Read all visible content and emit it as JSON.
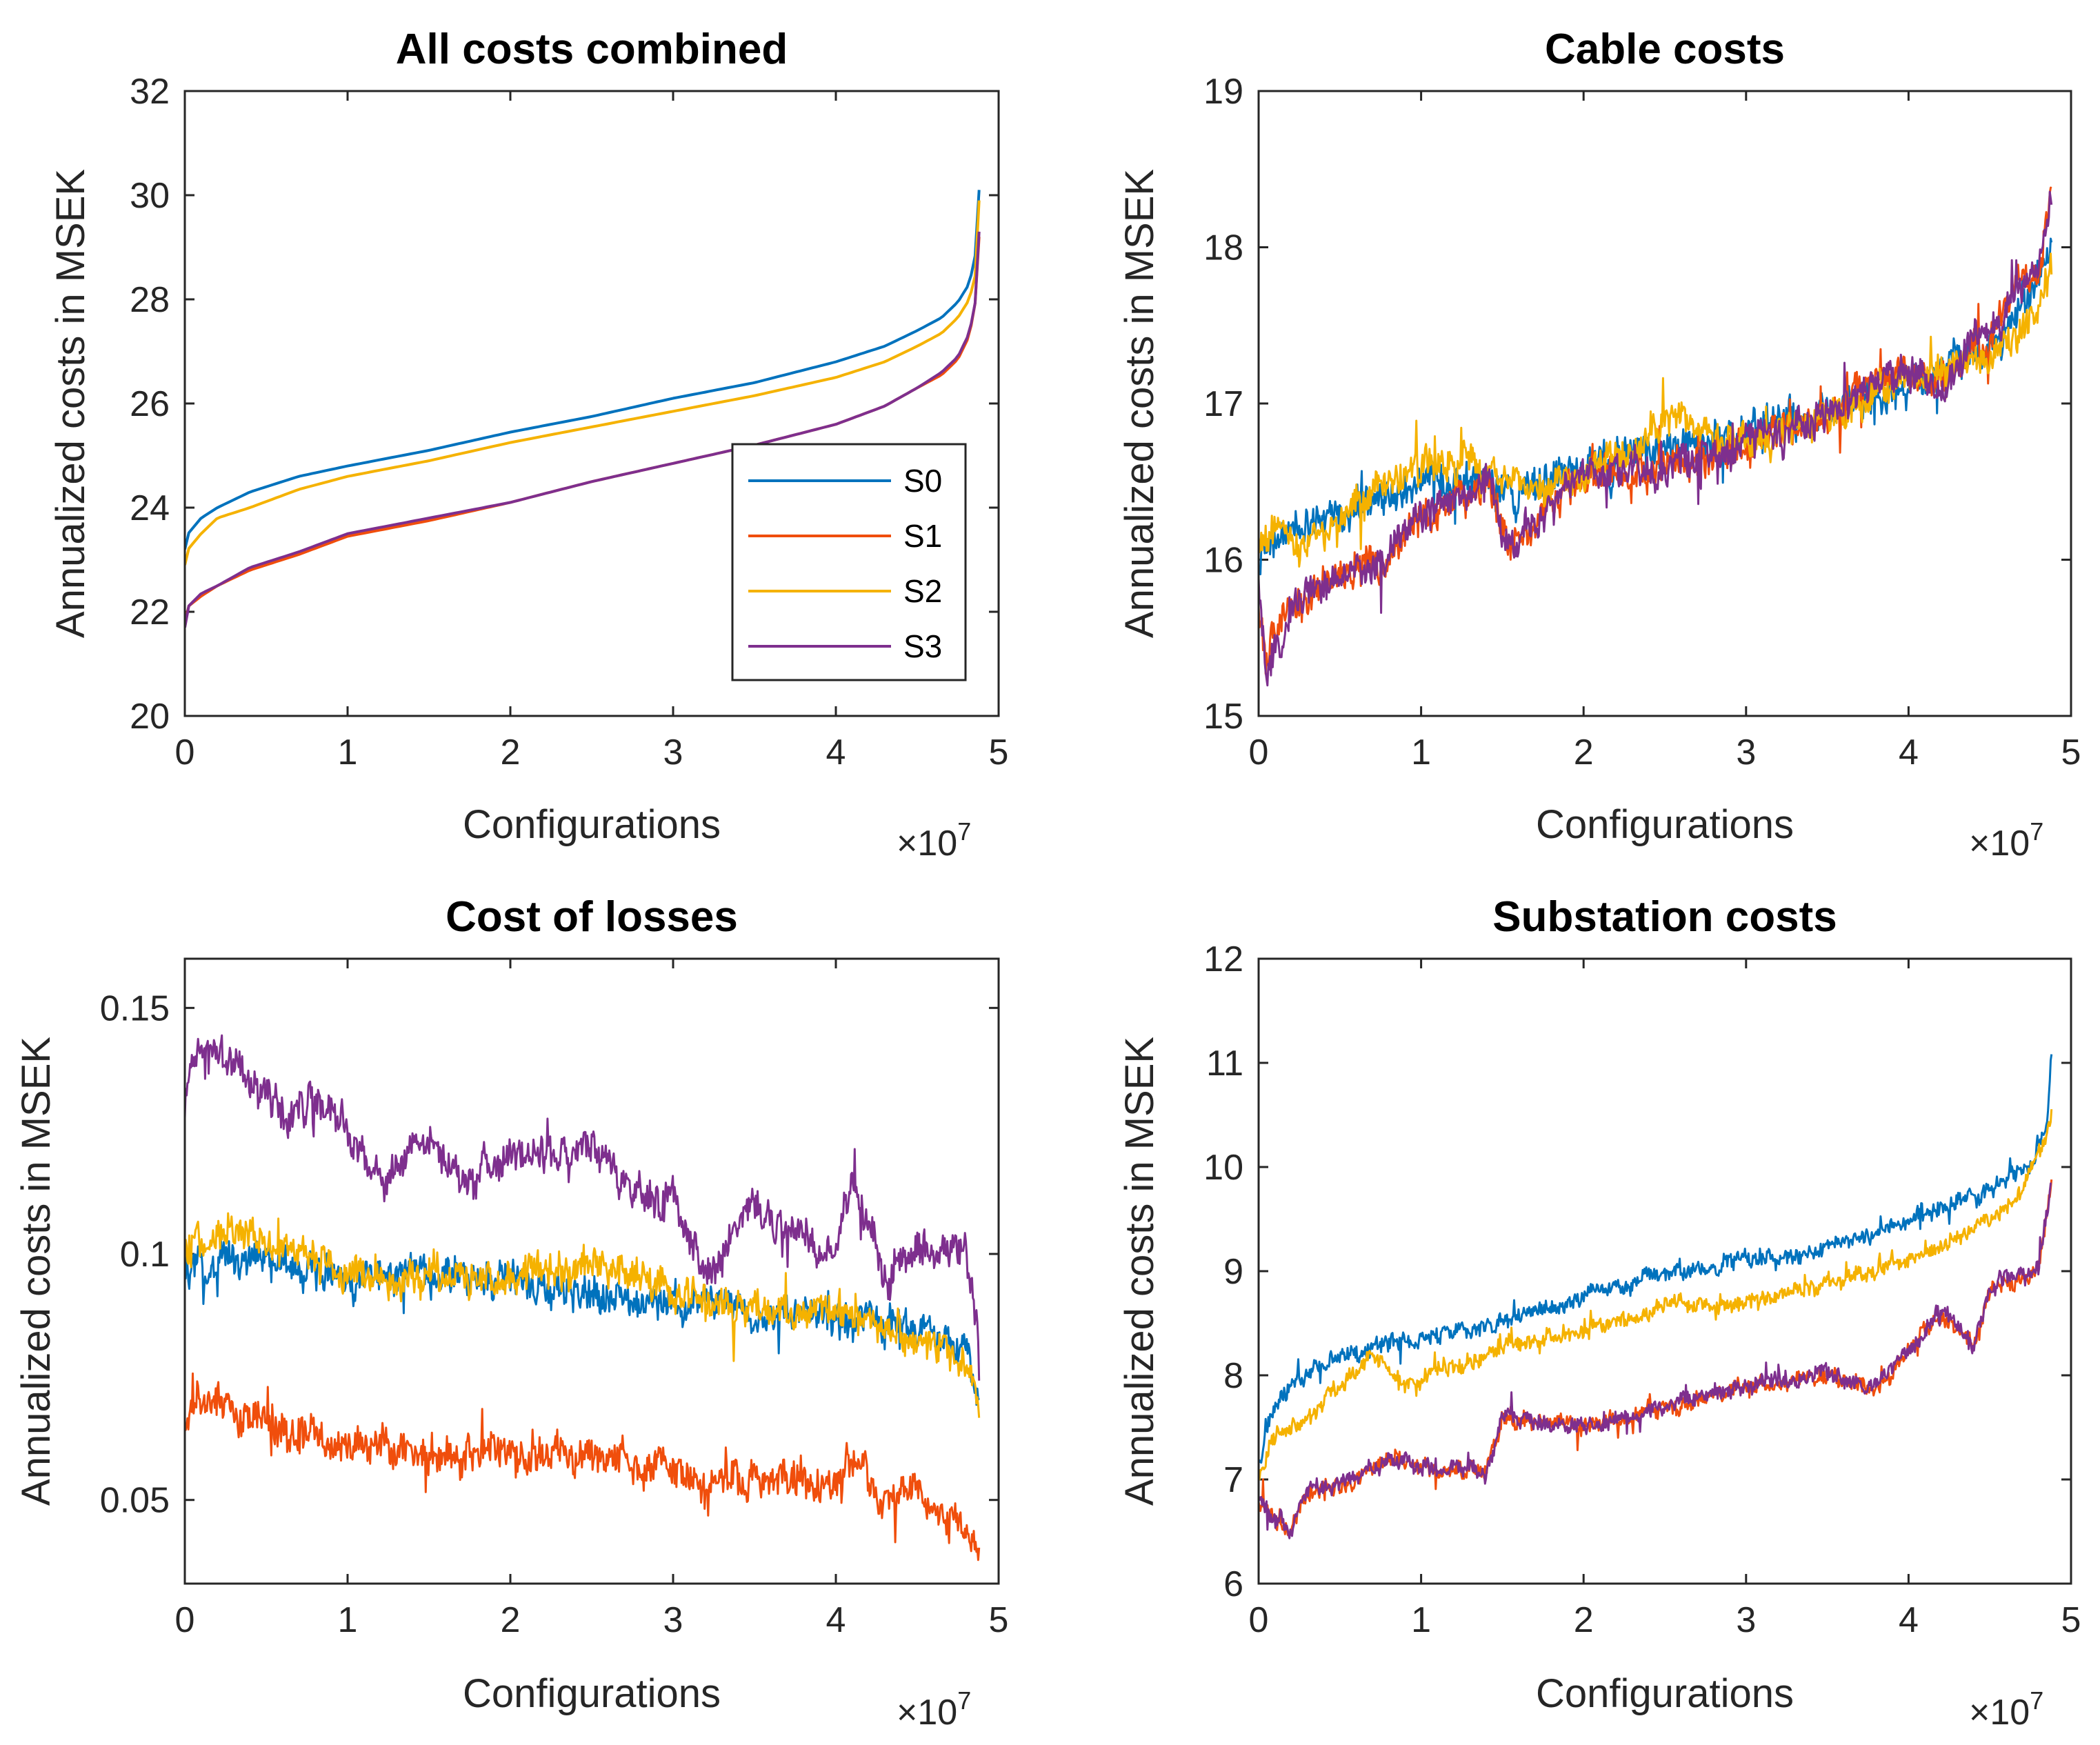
{
  "colors": {
    "S0": "#0072BD",
    "S1": "#F04E0C",
    "S2": "#F5B200",
    "S3": "#7E2F8E",
    "axis": "#262626"
  },
  "legend": {
    "entries": [
      "S0",
      "S1",
      "S2",
      "S3"
    ],
    "location": "lower-right of first subplot"
  },
  "chart_data": [
    {
      "type": "line",
      "title": "All costs combined",
      "xlabel": "Configurations",
      "ylabel": "Annualized costs in MSEK",
      "x_multiplier": "×10",
      "x_exponent": "7",
      "xlim": [
        0,
        5
      ],
      "ylim": [
        20,
        32
      ],
      "xticks": [
        0,
        1,
        2,
        3,
        4,
        5
      ],
      "xtick_labels": [
        "0",
        "1",
        "2",
        "3",
        "4",
        "5"
      ],
      "yticks": [
        20,
        22,
        24,
        26,
        28,
        30,
        32
      ],
      "ytick_labels": [
        "20",
        "22",
        "24",
        "26",
        "28",
        "30",
        "32"
      ],
      "x_end": 4.88,
      "noise": 0,
      "series": [
        {
          "name": "S0",
          "x": [
            0,
            0.02,
            0.1,
            0.2,
            0.4,
            0.7,
            1.0,
            1.5,
            2.0,
            2.5,
            3.0,
            3.5,
            4.0,
            4.3,
            4.5,
            4.65,
            4.75,
            4.82,
            4.86,
            4.88
          ],
          "y": [
            23.2,
            23.5,
            23.8,
            24.0,
            24.3,
            24.6,
            24.8,
            25.1,
            25.45,
            25.75,
            26.1,
            26.4,
            26.8,
            27.1,
            27.4,
            27.65,
            27.95,
            28.3,
            28.9,
            30.1
          ]
        },
        {
          "name": "S1",
          "x": [
            0,
            0.02,
            0.1,
            0.2,
            0.4,
            0.7,
            1.0,
            1.5,
            2.0,
            2.5,
            3.0,
            3.5,
            4.0,
            4.3,
            4.5,
            4.65,
            4.75,
            4.82,
            4.86,
            4.88
          ],
          "y": [
            21.8,
            22.1,
            22.3,
            22.5,
            22.8,
            23.1,
            23.45,
            23.75,
            24.1,
            24.5,
            24.85,
            25.2,
            25.6,
            25.95,
            26.3,
            26.55,
            26.85,
            27.3,
            28.0,
            29.2
          ]
        },
        {
          "name": "S2",
          "x": [
            0,
            0.02,
            0.1,
            0.2,
            0.4,
            0.7,
            1.0,
            1.5,
            2.0,
            2.5,
            3.0,
            3.5,
            4.0,
            4.3,
            4.5,
            4.65,
            4.75,
            4.82,
            4.86,
            4.88
          ],
          "y": [
            22.9,
            23.2,
            23.5,
            23.8,
            24.0,
            24.35,
            24.6,
            24.9,
            25.25,
            25.55,
            25.85,
            26.15,
            26.5,
            26.8,
            27.1,
            27.35,
            27.65,
            28.0,
            28.5,
            29.9
          ]
        },
        {
          "name": "S3",
          "x": [
            0,
            0.02,
            0.1,
            0.2,
            0.4,
            0.7,
            1.0,
            1.5,
            2.0,
            2.5,
            3.0,
            3.5,
            4.0,
            4.3,
            4.5,
            4.65,
            4.75,
            4.82,
            4.86,
            4.88
          ],
          "y": [
            21.7,
            22.1,
            22.35,
            22.5,
            22.85,
            23.15,
            23.5,
            23.8,
            24.1,
            24.5,
            24.85,
            25.2,
            25.6,
            25.95,
            26.3,
            26.6,
            26.9,
            27.35,
            28.0,
            29.3
          ]
        }
      ]
    },
    {
      "type": "line",
      "title": "Cable costs",
      "xlabel": "Configurations",
      "ylabel": "Annualized costs in MSEK",
      "x_multiplier": "×10",
      "x_exponent": "7",
      "xlim": [
        0,
        5
      ],
      "ylim": [
        15,
        19
      ],
      "xticks": [
        0,
        1,
        2,
        3,
        4,
        5
      ],
      "xtick_labels": [
        "0",
        "1",
        "2",
        "3",
        "4",
        "5"
      ],
      "yticks": [
        15,
        16,
        17,
        18,
        19
      ],
      "ytick_labels": [
        "15",
        "16",
        "17",
        "18",
        "19"
      ],
      "x_end": 4.88,
      "noise": 0.12,
      "series": [
        {
          "name": "S0",
          "x": [
            0,
            0.1,
            0.3,
            0.6,
            1.0,
            1.4,
            1.6,
            2.0,
            2.5,
            3.0,
            3.5,
            4.0,
            4.2,
            4.5,
            4.8,
            4.88
          ],
          "y": [
            16.0,
            16.1,
            16.2,
            16.3,
            16.5,
            16.5,
            16.4,
            16.6,
            16.7,
            16.85,
            16.95,
            17.1,
            17.25,
            17.35,
            17.8,
            18.1
          ]
        },
        {
          "name": "S1",
          "x": [
            0,
            0.05,
            0.2,
            0.5,
            0.8,
            1.0,
            1.4,
            1.55,
            2.0,
            2.5,
            3.0,
            3.5,
            4.0,
            4.2,
            4.5,
            4.8,
            4.88
          ],
          "y": [
            15.7,
            15.4,
            15.7,
            15.9,
            16.0,
            16.3,
            16.5,
            16.1,
            16.55,
            16.6,
            16.75,
            16.95,
            17.2,
            17.1,
            17.45,
            17.9,
            18.3
          ]
        },
        {
          "name": "S2",
          "x": [
            0,
            0.1,
            0.3,
            0.6,
            1.0,
            1.4,
            1.6,
            2.0,
            2.5,
            3.0,
            3.5,
            4.0,
            4.2,
            4.5,
            4.8,
            4.88
          ],
          "y": [
            16.1,
            16.2,
            16.1,
            16.35,
            16.6,
            16.6,
            16.45,
            16.55,
            16.9,
            16.75,
            16.9,
            17.15,
            17.2,
            17.3,
            17.6,
            17.9
          ]
        },
        {
          "name": "S3",
          "x": [
            0,
            0.05,
            0.2,
            0.5,
            0.8,
            1.0,
            1.4,
            1.55,
            2.0,
            2.5,
            3.0,
            3.5,
            4.0,
            4.2,
            4.5,
            4.8,
            4.88
          ],
          "y": [
            15.8,
            15.3,
            15.7,
            15.85,
            16.0,
            16.3,
            16.5,
            16.1,
            16.55,
            16.6,
            16.75,
            16.95,
            17.25,
            17.05,
            17.5,
            17.9,
            18.4
          ]
        }
      ]
    },
    {
      "type": "line",
      "title": "Cost of losses",
      "xlabel": "Configurations",
      "ylabel": "Annualized costs in MSEK",
      "x_multiplier": "×10",
      "x_exponent": "7",
      "xlim": [
        0,
        5
      ],
      "ylim": [
        0.033,
        0.16
      ],
      "xticks": [
        0,
        1,
        2,
        3,
        4,
        5
      ],
      "xtick_labels": [
        "0",
        "1",
        "2",
        "3",
        "4",
        "5"
      ],
      "yticks": [
        0.05,
        0.1,
        0.15
      ],
      "ytick_labels": [
        "0.05",
        "0.1",
        "0.15"
      ],
      "x_end": 4.88,
      "noise": 0.004,
      "series": [
        {
          "name": "S0",
          "x": [
            0,
            0.3,
            0.6,
            1.0,
            1.5,
            2.0,
            2.5,
            3.0,
            3.5,
            4.0,
            4.5,
            4.8,
            4.88
          ],
          "y": [
            0.095,
            0.1,
            0.097,
            0.095,
            0.096,
            0.094,
            0.092,
            0.09,
            0.089,
            0.087,
            0.084,
            0.08,
            0.07
          ]
        },
        {
          "name": "S1",
          "x": [
            0,
            0.05,
            0.3,
            0.6,
            1.0,
            1.5,
            2.0,
            2.5,
            3.0,
            3.2,
            3.5,
            4.0,
            4.1,
            4.3,
            4.5,
            4.8,
            4.88
          ],
          "y": [
            0.062,
            0.07,
            0.068,
            0.064,
            0.061,
            0.06,
            0.059,
            0.058,
            0.056,
            0.052,
            0.055,
            0.054,
            0.058,
            0.05,
            0.052,
            0.045,
            0.038
          ]
        },
        {
          "name": "S2",
          "x": [
            0,
            0.3,
            0.6,
            1.0,
            1.5,
            2.0,
            2.5,
            3.0,
            3.5,
            4.0,
            4.5,
            4.8,
            4.88
          ],
          "y": [
            0.1,
            0.104,
            0.102,
            0.096,
            0.096,
            0.094,
            0.097,
            0.092,
            0.089,
            0.088,
            0.083,
            0.078,
            0.068
          ]
        },
        {
          "name": "S3",
          "x": [
            0,
            0.05,
            0.3,
            0.6,
            0.9,
            1.2,
            1.5,
            1.7,
            2.0,
            2.5,
            3.0,
            3.2,
            3.5,
            4.0,
            4.1,
            4.3,
            4.5,
            4.8,
            4.88
          ],
          "y": [
            0.128,
            0.14,
            0.14,
            0.13,
            0.13,
            0.115,
            0.125,
            0.115,
            0.12,
            0.12,
            0.11,
            0.095,
            0.11,
            0.1,
            0.115,
            0.095,
            0.1,
            0.1,
            0.082
          ]
        }
      ]
    },
    {
      "type": "line",
      "title": "Substation costs",
      "xlabel": "Configurations",
      "ylabel": "Annualized costs in MSEK",
      "x_multiplier": "×10",
      "x_exponent": "7",
      "xlim": [
        0,
        5
      ],
      "ylim": [
        6,
        12
      ],
      "xticks": [
        0,
        1,
        2,
        3,
        4,
        5
      ],
      "xtick_labels": [
        "0",
        "1",
        "2",
        "3",
        "4",
        "5"
      ],
      "yticks": [
        6,
        7,
        8,
        9,
        10,
        11,
        12
      ],
      "ytick_labels": [
        "6",
        "7",
        "8",
        "9",
        "10",
        "11",
        "12"
      ],
      "x_end": 4.88,
      "noise": 0.09,
      "series": [
        {
          "name": "S0",
          "x": [
            0,
            0.05,
            0.2,
            0.5,
            0.8,
            1.0,
            1.5,
            2.0,
            2.5,
            3.0,
            3.5,
            4.0,
            4.5,
            4.75,
            4.85,
            4.88
          ],
          "y": [
            7.1,
            7.5,
            7.9,
            8.2,
            8.3,
            8.35,
            8.5,
            8.75,
            9.0,
            9.1,
            9.2,
            9.5,
            9.8,
            10.0,
            10.4,
            11.0
          ]
        },
        {
          "name": "S1",
          "x": [
            0,
            0.1,
            0.2,
            0.3,
            0.5,
            0.8,
            1.0,
            1.4,
            1.5,
            2.0,
            2.5,
            3.0,
            3.5,
            3.8,
            4.0,
            4.2,
            4.4,
            4.5,
            4.6,
            4.8,
            4.88
          ],
          "y": [
            6.8,
            6.6,
            6.5,
            6.9,
            6.9,
            7.2,
            7.1,
            7.1,
            7.6,
            7.5,
            7.7,
            7.9,
            8.0,
            7.9,
            8.2,
            8.6,
            8.3,
            8.8,
            8.9,
            9.0,
            9.9
          ]
        },
        {
          "name": "S2",
          "x": [
            0,
            0.1,
            0.3,
            0.5,
            0.7,
            0.9,
            1.2,
            1.5,
            2.0,
            2.5,
            3.0,
            3.5,
            4.0,
            4.3,
            4.5,
            4.7,
            4.88
          ],
          "y": [
            7.0,
            7.4,
            7.6,
            7.9,
            8.2,
            7.9,
            8.1,
            8.3,
            8.4,
            8.65,
            8.7,
            8.9,
            9.1,
            9.3,
            9.5,
            9.8,
            10.5
          ]
        },
        {
          "name": "S3",
          "x": [
            0,
            0.1,
            0.2,
            0.3,
            0.5,
            0.8,
            1.0,
            1.4,
            1.5,
            2.0,
            2.5,
            3.0,
            3.5,
            3.8,
            4.0,
            4.2,
            4.4,
            4.5,
            4.6,
            4.8,
            4.88
          ],
          "y": [
            6.8,
            6.6,
            6.5,
            6.95,
            6.95,
            7.2,
            7.1,
            7.1,
            7.6,
            7.5,
            7.7,
            7.9,
            8.0,
            7.9,
            8.2,
            8.6,
            8.3,
            8.8,
            8.9,
            9.0,
            9.9
          ]
        }
      ]
    }
  ]
}
